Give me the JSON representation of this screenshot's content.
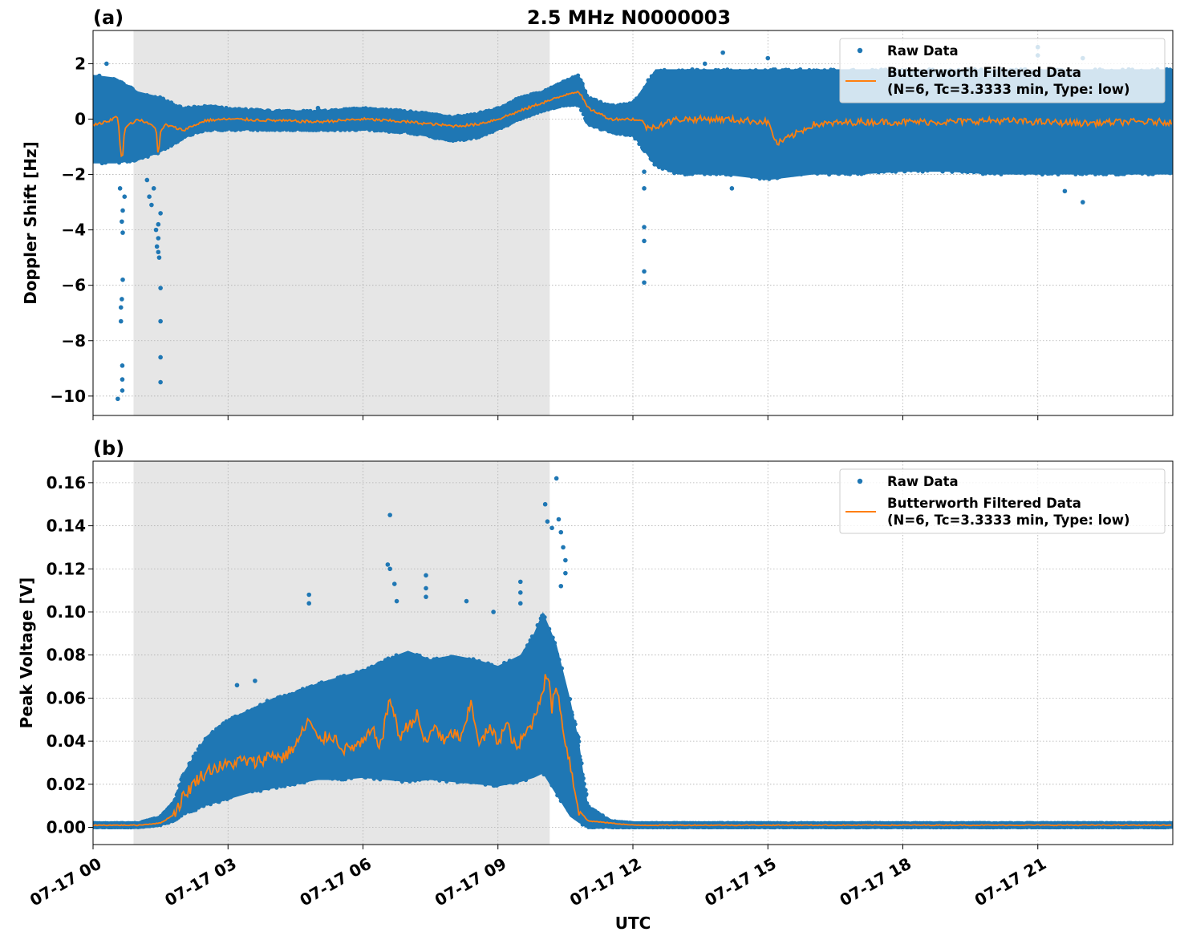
{
  "title": "2.5 MHz N0000003",
  "colors": {
    "raw": "#1f77b4",
    "filtered": "#ff7f0e",
    "shade": "#e6e6e6",
    "grid": "#b0b0b0"
  },
  "chart_data": [
    {
      "type": "scatter",
      "panel_label": "(a)",
      "ylabel": "Doppler Shift [Hz]",
      "xlabel": "",
      "xlim_hours": [
        0,
        24
      ],
      "ylim": [
        -10.7,
        3.2
      ],
      "yticks": [
        2,
        0,
        -2,
        -4,
        -6,
        -8,
        -10
      ],
      "ytick_labels": [
        "2",
        "0",
        "−2",
        "−4",
        "−6",
        "−8",
        "−10"
      ],
      "grid": true,
      "legend_position": "top-right",
      "shaded_region_hours": [
        0.9,
        10.15
      ],
      "series": [
        {
          "name": "Raw Data",
          "marker": "point",
          "envelope": {
            "x": [
              0,
              0.5,
              1,
              1.5,
              2,
              2.5,
              3,
              4,
              5,
              6,
              7,
              8,
              8.5,
              9,
              9.5,
              10,
              10.5,
              10.8,
              11,
              11.5,
              12,
              12.5,
              13,
              14,
              15,
              16,
              17,
              18,
              19,
              20,
              21,
              22,
              23,
              24
            ],
            "low": [
              -1.6,
              -1.6,
              -1.5,
              -1.2,
              -0.7,
              -0.4,
              -0.4,
              -0.4,
              -0.4,
              -0.4,
              -0.5,
              -0.8,
              -0.7,
              -0.4,
              0.0,
              0.3,
              0.5,
              0.5,
              -0.2,
              -0.5,
              -0.6,
              -1.7,
              -2.0,
              -2.0,
              -2.2,
              -2.0,
              -2.0,
              -1.9,
              -1.9,
              -2.0,
              -2.0,
              -2.0,
              -2.0,
              -2.0
            ],
            "high": [
              1.6,
              1.5,
              1.0,
              0.8,
              0.4,
              0.5,
              0.4,
              0.3,
              0.3,
              0.4,
              0.3,
              0.1,
              0.2,
              0.4,
              0.8,
              1.0,
              1.4,
              1.6,
              0.8,
              0.5,
              0.6,
              1.8,
              1.8,
              1.8,
              1.8,
              1.8,
              1.8,
              1.8,
              1.8,
              1.8,
              1.8,
              1.8,
              1.8,
              1.8
            ]
          },
          "outliers": [
            [
              0.55,
              -10.1
            ],
            [
              0.65,
              -9.8
            ],
            [
              0.65,
              -9.4
            ],
            [
              0.65,
              -8.9
            ],
            [
              0.62,
              -7.3
            ],
            [
              0.62,
              -6.8
            ],
            [
              0.64,
              -6.5
            ],
            [
              0.66,
              -5.8
            ],
            [
              0.66,
              -4.1
            ],
            [
              0.64,
              -3.7
            ],
            [
              0.66,
              -3.3
            ],
            [
              0.7,
              -2.8
            ],
            [
              0.6,
              -2.5
            ],
            [
              1.5,
              -9.5
            ],
            [
              1.5,
              -8.6
            ],
            [
              1.5,
              -7.3
            ],
            [
              1.5,
              -6.1
            ],
            [
              1.47,
              -5.0
            ],
            [
              1.45,
              -4.8
            ],
            [
              1.42,
              -4.6
            ],
            [
              1.45,
              -4.3
            ],
            [
              1.4,
              -4.0
            ],
            [
              1.45,
              -3.8
            ],
            [
              1.5,
              -3.4
            ],
            [
              1.3,
              -3.1
            ],
            [
              1.25,
              -2.8
            ],
            [
              1.35,
              -2.5
            ],
            [
              1.2,
              -2.2
            ],
            [
              12.25,
              -5.9
            ],
            [
              12.25,
              -5.5
            ],
            [
              12.25,
              -4.4
            ],
            [
              12.25,
              -3.9
            ],
            [
              12.25,
              -2.5
            ],
            [
              12.25,
              -1.9
            ],
            [
              0.3,
              2.0
            ],
            [
              5.0,
              0.4
            ],
            [
              13.6,
              2.0
            ],
            [
              14.0,
              2.4
            ],
            [
              15.0,
              2.2
            ],
            [
              21.0,
              2.6
            ],
            [
              21.0,
              2.3
            ],
            [
              22.0,
              2.2
            ],
            [
              22.0,
              -3.0
            ],
            [
              21.6,
              -2.6
            ],
            [
              14.2,
              -2.5
            ]
          ]
        },
        {
          "name": "Butterworth Filtered Data\n(N=6, Tc=3.3333 min, Type: low)",
          "marker": "line",
          "x": [
            0,
            0.3,
            0.55,
            0.6,
            0.65,
            0.7,
            1.0,
            1.4,
            1.45,
            1.5,
            1.6,
            2.0,
            2.5,
            3,
            4,
            5,
            6,
            7,
            8,
            8.5,
            9,
            9.5,
            10,
            10.3,
            10.6,
            10.8,
            11.0,
            11.5,
            12,
            12.25,
            12.3,
            13,
            14,
            15,
            15.2,
            16,
            17,
            18,
            19,
            20,
            21,
            22,
            23,
            24
          ],
          "y": [
            -0.2,
            -0.1,
            0.1,
            -0.9,
            -1.6,
            -0.3,
            0.0,
            -0.3,
            -1.4,
            -0.5,
            -0.2,
            -0.4,
            -0.05,
            0.0,
            -0.05,
            -0.1,
            0.0,
            -0.1,
            -0.25,
            -0.2,
            0.0,
            0.3,
            0.6,
            0.75,
            0.95,
            1.0,
            0.4,
            0.0,
            0.0,
            -0.1,
            -0.35,
            0.0,
            0.0,
            -0.1,
            -0.9,
            -0.2,
            -0.1,
            -0.1,
            -0.1,
            -0.05,
            -0.1,
            -0.15,
            -0.1,
            -0.1
          ]
        }
      ]
    },
    {
      "type": "scatter",
      "panel_label": "(b)",
      "ylabel": "Peak Voltage [V]",
      "xlabel": "UTC",
      "xlim_hours": [
        0,
        24
      ],
      "ylim": [
        -0.008,
        0.17
      ],
      "yticks": [
        0.0,
        0.02,
        0.04,
        0.06,
        0.08,
        0.1,
        0.12,
        0.14,
        0.16
      ],
      "ytick_labels": [
        "0.00",
        "0.02",
        "0.04",
        "0.06",
        "0.08",
        "0.10",
        "0.12",
        "0.14",
        "0.16"
      ],
      "xticks_hours": [
        0,
        3,
        6,
        9,
        12,
        15,
        18,
        21
      ],
      "xtick_labels": [
        "07-17 00",
        "07-17 03",
        "07-17 06",
        "07-17 09",
        "07-17 12",
        "07-17 15",
        "07-17 18",
        "07-17 21"
      ],
      "grid": true,
      "legend_position": "top-right",
      "shaded_region_hours": [
        0.9,
        10.15
      ],
      "series": [
        {
          "name": "Raw Data",
          "marker": "point",
          "envelope": {
            "x": [
              0,
              1.0,
              1.5,
              1.8,
              2.0,
              2.3,
              2.5,
              3,
              3.5,
              4,
              4.5,
              5,
              5.5,
              6,
              6.5,
              7,
              7.5,
              8,
              8.5,
              9,
              9.5,
              9.8,
              10.0,
              10.3,
              10.6,
              10.8,
              11.0,
              11.5,
              12,
              24
            ],
            "low": [
              0.0,
              0.0,
              0.001,
              0.003,
              0.006,
              0.008,
              0.01,
              0.013,
              0.016,
              0.018,
              0.02,
              0.022,
              0.022,
              0.023,
              0.022,
              0.021,
              0.022,
              0.021,
              0.02,
              0.019,
              0.021,
              0.023,
              0.025,
              0.015,
              0.005,
              0.002,
              0.0,
              0.0,
              0.0,
              0.0
            ],
            "high": [
              0.002,
              0.002,
              0.005,
              0.012,
              0.025,
              0.035,
              0.042,
              0.05,
              0.055,
              0.06,
              0.063,
              0.067,
              0.07,
              0.073,
              0.078,
              0.082,
              0.078,
              0.08,
              0.078,
              0.075,
              0.08,
              0.09,
              0.1,
              0.085,
              0.06,
              0.04,
              0.01,
              0.003,
              0.002,
              0.002
            ]
          },
          "outliers": [
            [
              3.2,
              0.066
            ],
            [
              3.6,
              0.068
            ],
            [
              4.8,
              0.108
            ],
            [
              4.8,
              0.104
            ],
            [
              6.6,
              0.145
            ],
            [
              6.55,
              0.122
            ],
            [
              6.6,
              0.12
            ],
            [
              6.7,
              0.113
            ],
            [
              6.75,
              0.105
            ],
            [
              7.4,
              0.117
            ],
            [
              7.4,
              0.111
            ],
            [
              7.4,
              0.107
            ],
            [
              8.3,
              0.105
            ],
            [
              8.9,
              0.1
            ],
            [
              9.5,
              0.114
            ],
            [
              9.5,
              0.109
            ],
            [
              9.5,
              0.104
            ],
            [
              10.05,
              0.15
            ],
            [
              10.1,
              0.142
            ],
            [
              10.2,
              0.139
            ],
            [
              10.3,
              0.162
            ],
            [
              10.35,
              0.143
            ],
            [
              10.4,
              0.137
            ],
            [
              10.45,
              0.13
            ],
            [
              10.5,
              0.124
            ],
            [
              10.5,
              0.118
            ],
            [
              10.4,
              0.112
            ]
          ]
        },
        {
          "name": "Butterworth Filtered Data\n(N=6, Tc=3.3333 min, Type: low)",
          "marker": "line",
          "x": [
            0,
            1.0,
            1.5,
            1.8,
            2.0,
            2.3,
            2.6,
            3.0,
            3.3,
            3.6,
            4.0,
            4.2,
            4.5,
            4.8,
            5.0,
            5.3,
            5.6,
            6.0,
            6.2,
            6.4,
            6.6,
            6.8,
            7.0,
            7.2,
            7.4,
            7.6,
            7.8,
            8.0,
            8.2,
            8.4,
            8.6,
            8.8,
            9.0,
            9.2,
            9.4,
            9.6,
            9.8,
            10.0,
            10.1,
            10.2,
            10.3,
            10.4,
            10.5,
            10.6,
            10.7,
            10.8,
            11.0,
            11.5,
            12,
            24
          ],
          "y": [
            0.001,
            0.001,
            0.002,
            0.006,
            0.014,
            0.022,
            0.027,
            0.029,
            0.031,
            0.03,
            0.034,
            0.032,
            0.038,
            0.05,
            0.04,
            0.043,
            0.036,
            0.039,
            0.045,
            0.038,
            0.061,
            0.042,
            0.047,
            0.052,
            0.038,
            0.048,
            0.039,
            0.044,
            0.041,
            0.058,
            0.038,
            0.046,
            0.04,
            0.048,
            0.036,
            0.043,
            0.05,
            0.065,
            0.072,
            0.055,
            0.068,
            0.052,
            0.04,
            0.03,
            0.018,
            0.008,
            0.003,
            0.002,
            0.001,
            0.001
          ]
        }
      ]
    }
  ]
}
